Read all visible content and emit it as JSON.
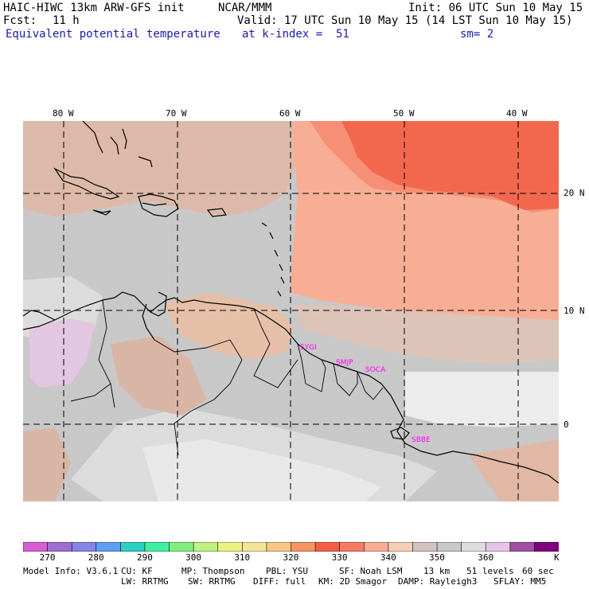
{
  "header": {
    "model_title": "HAIC-HIWC 13km ARW-GFS init",
    "org": "NCAR/MMM",
    "init": "Init: 06 UTC Sun 10 May 15",
    "fcst_label": "Fcst:",
    "fcst_value": "11 h",
    "valid": "Valid: 17 UTC Sun 10 May 15 (14 LST Sun 10 May 15)",
    "field": "Equivalent potential temperature",
    "level": "at k-index =  51",
    "smoothing": "sm= 2"
  },
  "map": {
    "lon_labels": [
      "80 W",
      "70 W",
      "60 W",
      "50 W",
      "40 W"
    ],
    "lat_labels": [
      "20 N",
      "10 N",
      "0"
    ],
    "stations": [
      "SYGI",
      "SMJP",
      "SOCA",
      "SBBE"
    ]
  },
  "colorbar": {
    "colors": [
      "#d55fd5",
      "#9f6fcf",
      "#8585e8",
      "#5f9ff5",
      "#30cfc3",
      "#40ef9f",
      "#7fef7f",
      "#bff27f",
      "#ecf27f",
      "#f5e49a",
      "#f9c886",
      "#f69464",
      "#f45f46",
      "#f57c63",
      "#f7ae94",
      "#f5cfb5",
      "#cfc2bf",
      "#c8c8c8",
      "#dddddd",
      "#e8c3e8",
      "#a04fa0",
      "#7f007f"
    ],
    "labels": [
      "270",
      "280",
      "290",
      "300",
      "310",
      "320",
      "330",
      "340",
      "350",
      "360"
    ],
    "unit": "K"
  },
  "footer": {
    "line1": [
      "Model Info: V3.6.1",
      "CU: KF",
      "MP: Thompson",
      "PBL: YSU",
      "SF: Noah LSM",
      "13 km",
      "51 levels",
      "60 sec"
    ],
    "line2": [
      "LW: RRTMG",
      "SW: RRTMG",
      "DIFF: full",
      "KM: 2D Smagor",
      "DAMP: Rayleigh3",
      "SFLAY: MM5"
    ]
  }
}
